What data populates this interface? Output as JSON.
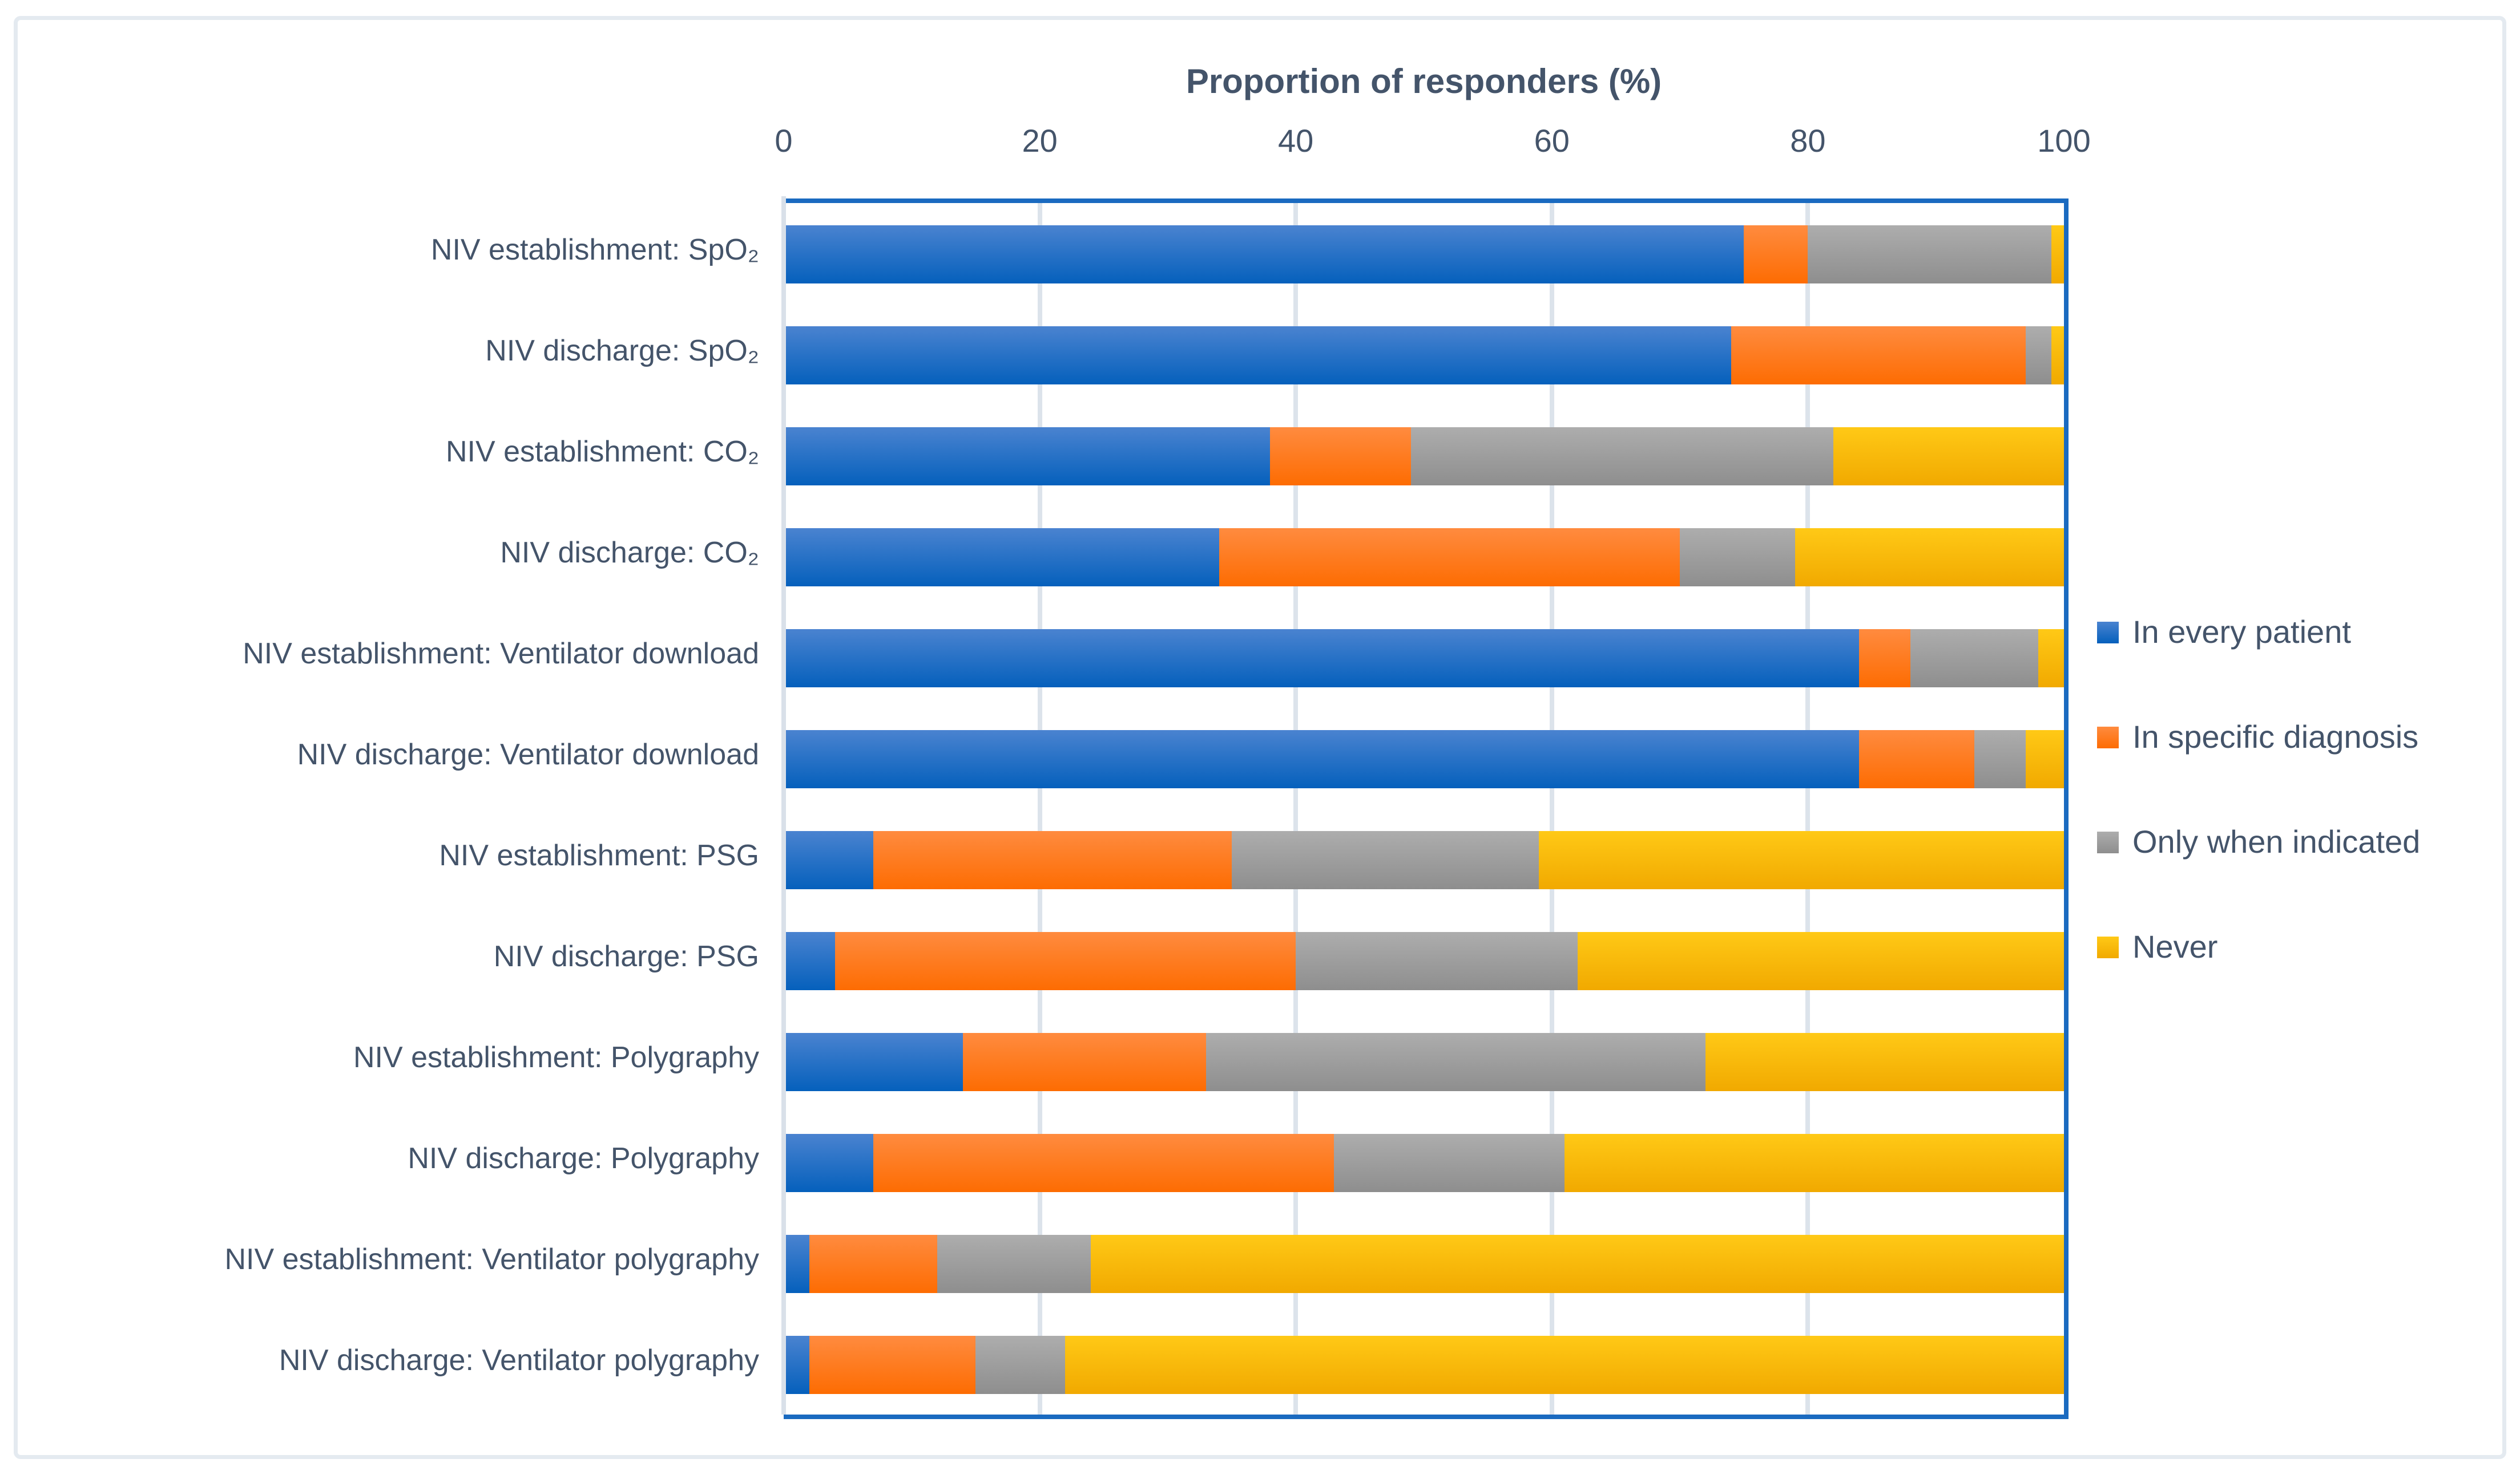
{
  "figure": {
    "background": "#ffffff",
    "frame_color": "#e4eaf0",
    "text_color": "#44546a",
    "plot_border_color": "#1a6ac0",
    "gridline_color": "#dce3eb",
    "axis_line_color": "#d9e0e9"
  },
  "chart_data": {
    "type": "bar",
    "orientation": "horizontal-stacked",
    "title": "Proportion of responders (%)",
    "xlabel": "Proportion of responders (%)",
    "ylabel": "",
    "xlim": [
      0,
      100
    ],
    "ticks": [
      0,
      20,
      40,
      60,
      80,
      100
    ],
    "grid": "vertical gridlines every 20, light gray",
    "legend_position": "right",
    "categories": [
      "NIV establishment: SpO₂",
      "NIV discharge: SpO₂",
      "NIV establishment: CO₂",
      "NIV discharge: CO₂",
      "NIV establishment: Ventilator download",
      "NIV discharge: Ventilator download",
      "NIV establishment: PSG",
      "NIV discharge: PSG",
      "NIV establishment: Polygraphy",
      "NIV discharge: Polygraphy",
      "NIV establishment: Ventilator polygraphy",
      "NIV discharge: Ventilator polygraphy"
    ],
    "series": [
      {
        "name": "In every patient",
        "color_top": "#4a83d0",
        "color_bottom": "#0560bc",
        "values": [
          75,
          74,
          38,
          34,
          84,
          84,
          7,
          4,
          14,
          7,
          2,
          2
        ]
      },
      {
        "name": "In specific diagnosis",
        "color_top": "#ff8b3f",
        "color_bottom": "#fd6c02",
        "values": [
          5,
          23,
          11,
          36,
          4,
          9,
          28,
          36,
          19,
          36,
          10,
          13
        ]
      },
      {
        "name": "Only when indicated",
        "color_top": "#adadad",
        "color_bottom": "#8e8e8e",
        "values": [
          19,
          2,
          33,
          9,
          10,
          4,
          24,
          22,
          39,
          18,
          12,
          7
        ]
      },
      {
        "name": "Never",
        "color_top": "#ffc916",
        "color_bottom": "#f1a900",
        "values": [
          1,
          1,
          18,
          21,
          2,
          3,
          41,
          38,
          28,
          39,
          76,
          78
        ]
      }
    ]
  }
}
